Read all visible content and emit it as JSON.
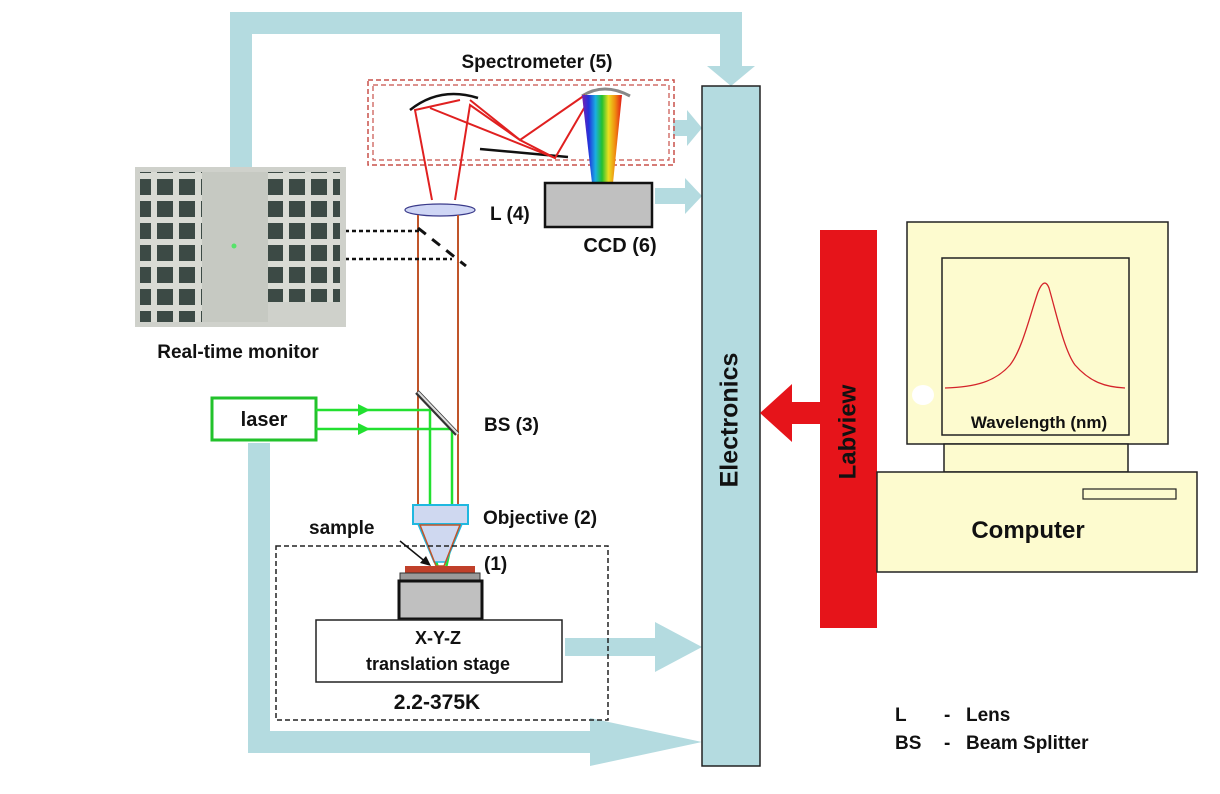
{
  "labels": {
    "spectrometer": "Spectrometer (5)",
    "lens": "L (4)",
    "ccd": "CCD (6)",
    "monitor": "Real-time monitor",
    "laser": "laser",
    "bs": "BS (3)",
    "objective": "Objective (2)",
    "sample": "sample",
    "sample_num": "(1)",
    "stage_line1": "X-Y-Z",
    "stage_line2": "translation stage",
    "temperature": "2.2-375K",
    "electronics": "Electronics",
    "labview": "Labview",
    "wavelength": "Wavelength (nm)",
    "computer": "Computer"
  },
  "legend": [
    {
      "abbr": "L",
      "dash": "-",
      "meaning": "Lens"
    },
    {
      "abbr": "BS",
      "dash": "-",
      "meaning": "Beam Splitter"
    }
  ],
  "colors": {
    "connector": "#b4dbe0",
    "electronics": "#b4dbe0",
    "labview": "#e6141a",
    "laser": "#22c22b",
    "beam": "#c0552a",
    "computer_body": "#fdfbcf",
    "spectrometer_box": "#c8504a"
  }
}
